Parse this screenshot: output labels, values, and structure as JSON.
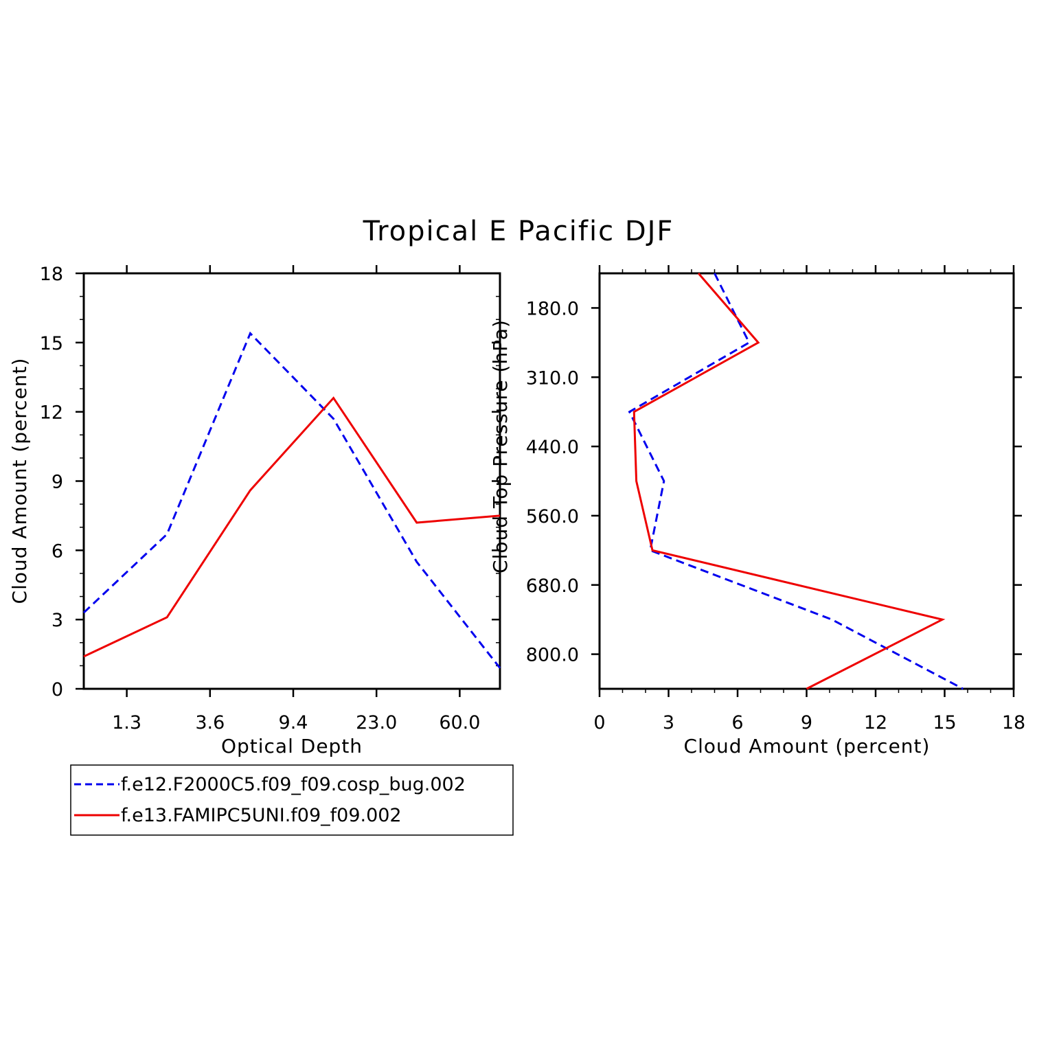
{
  "title": "Tropical E Pacific DJF",
  "colors": {
    "blue": "#0000ee",
    "red": "#ee0000"
  },
  "legend": [
    {
      "name": "f.e12.F2000C5.f09_f09.cosp_bug.002",
      "color": "#0000ee",
      "dash": true
    },
    {
      "name": "f.e13.FAMIPC5UNI.f09_f09.002",
      "color": "#ee0000",
      "dash": false
    }
  ],
  "chart_data": [
    {
      "type": "line",
      "xlabel": "Optical Depth",
      "ylabel": "Cloud Amount (percent)",
      "ylim": [
        0,
        18
      ],
      "yticks": [
        "0",
        "3",
        "6",
        "9",
        "12",
        "15",
        "18"
      ],
      "xtick_labels": [
        "1.3",
        "3.6",
        "9.4",
        "23.0",
        "60.0"
      ],
      "x_index": [
        0,
        1,
        2,
        3,
        4,
        5
      ],
      "series": [
        {
          "name": "f.e12.F2000C5.f09_f09.cosp_bug.002",
          "values": [
            3.3,
            6.7,
            15.4,
            11.7,
            5.5,
            0.9
          ]
        },
        {
          "name": "f.e13.FAMIPC5UNI.f09_f09.002",
          "values": [
            1.4,
            3.1,
            8.6,
            12.6,
            7.2,
            7.5
          ]
        }
      ]
    },
    {
      "type": "line",
      "xlabel": "Cloud Amount (percent)",
      "ylabel": "Cloud Top Pressure (hPa)",
      "xlim": [
        0,
        18
      ],
      "xticks": [
        "0",
        "3",
        "6",
        "9",
        "12",
        "15",
        "18"
      ],
      "ytick_labels": [
        "180.0",
        "310.0",
        "440.0",
        "560.0",
        "680.0",
        "800.0"
      ],
      "y_index": [
        0,
        1,
        2,
        3,
        4,
        5,
        6
      ],
      "series": [
        {
          "name": "f.e12.F2000C5.f09_f09.cosp_bug.002",
          "values": [
            5.0,
            6.5,
            1.3,
            2.8,
            2.2,
            10.1,
            15.8
          ]
        },
        {
          "name": "f.e13.FAMIPC5UNI.f09_f09.002",
          "values": [
            4.3,
            6.9,
            1.5,
            1.6,
            2.3,
            14.9,
            9.0
          ]
        }
      ]
    }
  ]
}
